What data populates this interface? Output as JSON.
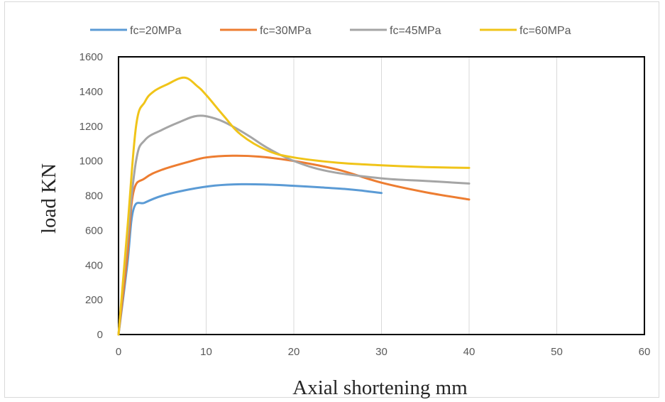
{
  "chart_data": {
    "type": "line",
    "title": "",
    "xlabel": "Axial shortening mm",
    "ylabel": "load KN",
    "xlim": [
      0,
      60
    ],
    "ylim": [
      0,
      1600
    ],
    "xticks": [
      "0",
      "10",
      "20",
      "30",
      "40",
      "50",
      "60"
    ],
    "yticks": [
      "0",
      "200",
      "400",
      "600",
      "800",
      "1000",
      "1200",
      "1400",
      "1600"
    ],
    "grid": "vertical",
    "legend_position": "top",
    "series": [
      {
        "name": "fc=20MPa",
        "color": "#5b9bd5",
        "points": [
          [
            0,
            0
          ],
          [
            1,
            400
          ],
          [
            1.7,
            720
          ],
          [
            3,
            760
          ],
          [
            5,
            800
          ],
          [
            8,
            835
          ],
          [
            11,
            858
          ],
          [
            14,
            866
          ],
          [
            17,
            864
          ],
          [
            20,
            857
          ],
          [
            23,
            848
          ],
          [
            26,
            838
          ],
          [
            28,
            828
          ],
          [
            30,
            815
          ]
        ]
      },
      {
        "name": "fc=30MPa",
        "color": "#ed7d31",
        "points": [
          [
            0,
            0
          ],
          [
            1,
            450
          ],
          [
            1.7,
            820
          ],
          [
            3,
            900
          ],
          [
            5,
            950
          ],
          [
            8,
            995
          ],
          [
            10,
            1020
          ],
          [
            13,
            1030
          ],
          [
            16,
            1025
          ],
          [
            20,
            1000
          ],
          [
            25,
            950
          ],
          [
            30,
            875
          ],
          [
            35,
            820
          ],
          [
            40,
            778
          ]
        ]
      },
      {
        "name": "fc=45MPa",
        "color": "#a5a5a5",
        "points": [
          [
            0,
            0
          ],
          [
            1,
            550
          ],
          [
            2,
            1000
          ],
          [
            3,
            1120
          ],
          [
            5,
            1180
          ],
          [
            7,
            1225
          ],
          [
            9,
            1260
          ],
          [
            11,
            1245
          ],
          [
            13,
            1200
          ],
          [
            15,
            1140
          ],
          [
            17,
            1075
          ],
          [
            20,
            1000
          ],
          [
            24,
            940
          ],
          [
            30,
            900
          ],
          [
            35,
            885
          ],
          [
            40,
            870
          ]
        ]
      },
      {
        "name": "fc=60MPa",
        "color": "#f0c419",
        "points": [
          [
            0,
            0
          ],
          [
            1,
            600
          ],
          [
            2,
            1200
          ],
          [
            3,
            1340
          ],
          [
            4,
            1400
          ],
          [
            5.5,
            1440
          ],
          [
            7.5,
            1480
          ],
          [
            9,
            1430
          ],
          [
            10,
            1380
          ],
          [
            12,
            1260
          ],
          [
            14,
            1150
          ],
          [
            17,
            1060
          ],
          [
            20,
            1020
          ],
          [
            25,
            990
          ],
          [
            30,
            975
          ],
          [
            35,
            965
          ],
          [
            40,
            960
          ]
        ]
      }
    ]
  }
}
